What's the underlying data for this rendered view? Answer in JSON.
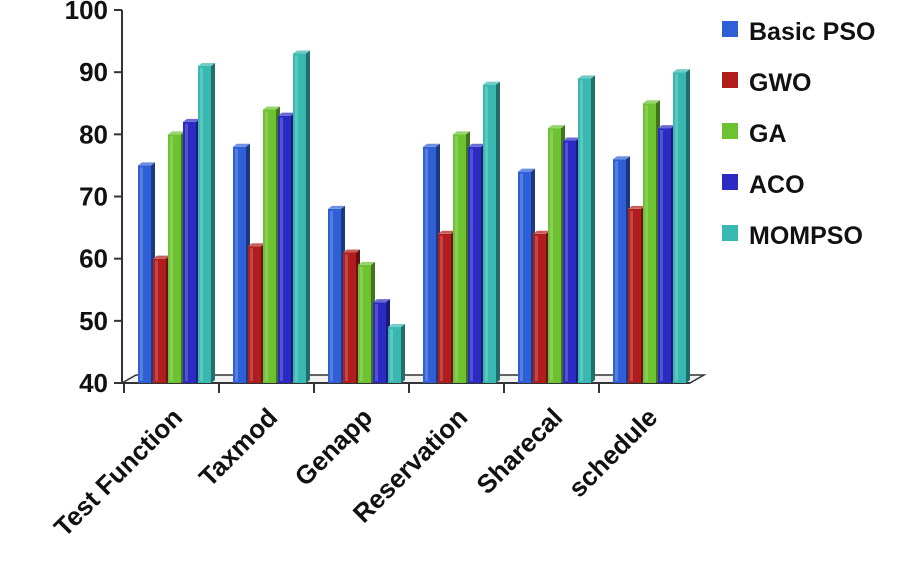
{
  "chart_data": {
    "type": "bar",
    "categories": [
      "Test Function",
      "Taxmod",
      "Genapp",
      "Reservation",
      "Sharecal",
      "schedule"
    ],
    "series": [
      {
        "name": "Basic PSO",
        "values": [
          75,
          78,
          68,
          78,
          74,
          76
        ],
        "color": "#2f5fd6"
      },
      {
        "name": "GWO",
        "values": [
          60,
          62,
          61,
          64,
          64,
          68
        ],
        "color": "#b11c1c"
      },
      {
        "name": "GA",
        "values": [
          80,
          84,
          59,
          80,
          81,
          85
        ],
        "color": "#6cc22f"
      },
      {
        "name": "ACO",
        "values": [
          82,
          83,
          53,
          78,
          79,
          81
        ],
        "color": "#2b2bc4"
      },
      {
        "name": "MOMPSO",
        "values": [
          91,
          93,
          49,
          88,
          89,
          90
        ],
        "color": "#37b8b0"
      }
    ],
    "yticks": [
      40,
      50,
      60,
      70,
      80,
      90,
      100
    ],
    "ylim": [
      40,
      100
    ],
    "legend_position": "right",
    "grid": false,
    "style": "3d-column"
  }
}
